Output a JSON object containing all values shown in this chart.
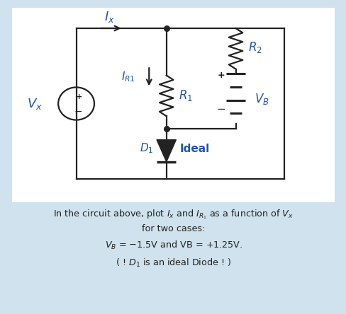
{
  "bg_color": "#cfe2ed",
  "circuit_bg": "#ffffff",
  "text_color": "#2255aa",
  "circuit_color": "#222222",
  "figsize": [
    4.89,
    4.44
  ],
  "dpi": 100,
  "lw": 1.6
}
